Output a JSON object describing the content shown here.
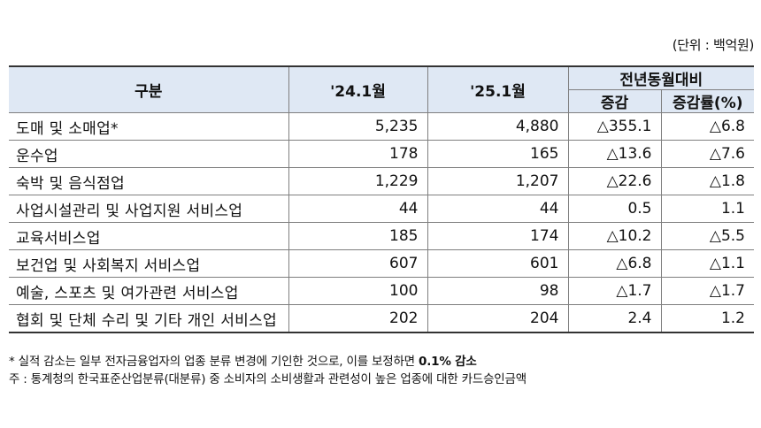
{
  "unit": "(단위 : 백억원)",
  "header": {
    "category": "구분",
    "col1": "'24.1월",
    "col2": "'25.1월",
    "group": "전년동월대비",
    "change": "증감",
    "rate": "증감률(%)"
  },
  "rows": [
    {
      "name": "도매 및 소매업*",
      "v1": "5,235",
      "v2": "4,880",
      "change": "△355.1",
      "rate": "△6.8"
    },
    {
      "name": "운수업",
      "v1": "178",
      "v2": "165",
      "change": "△13.6",
      "rate": "△7.6"
    },
    {
      "name": "숙박 및 음식점업",
      "v1": "1,229",
      "v2": "1,207",
      "change": "△22.6",
      "rate": "△1.8"
    },
    {
      "name": "사업시설관리 및 사업지원 서비스업",
      "v1": "44",
      "v2": "44",
      "change": "0.5",
      "rate": "1.1"
    },
    {
      "name": "교육서비스업",
      "v1": "185",
      "v2": "174",
      "change": "△10.2",
      "rate": "△5.5"
    },
    {
      "name": "보건업 및 사회복지 서비스업",
      "v1": "607",
      "v2": "601",
      "change": "△6.8",
      "rate": "△1.1"
    },
    {
      "name": "예술, 스포츠 및 여가관련 서비스업",
      "v1": "100",
      "v2": "98",
      "change": "△1.7",
      "rate": "△1.7"
    },
    {
      "name": "협회 및 단체 수리 및 기타 개인 서비스업",
      "v1": "202",
      "v2": "204",
      "change": "2.4",
      "rate": "1.2"
    }
  ],
  "notes": {
    "note1_prefix": "* 실적 감소는 일부 전자금융업자의 업종 분류 변경에 기인한 것으로, 이를 보정하면 ",
    "note1_bold": "0.1% 감소",
    "note2": "주 : 통계청의 한국표준산업분류(대분류) 중 소비자의 소비생활과 관련성이 높은 업종에 대한 카드승인금액"
  }
}
